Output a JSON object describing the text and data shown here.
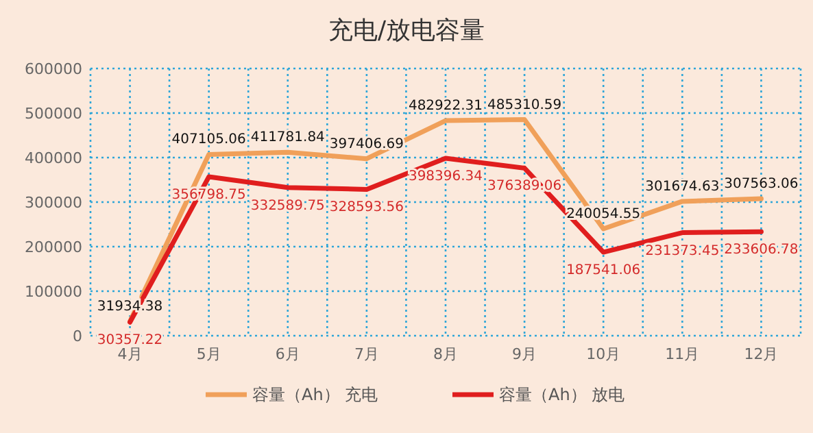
{
  "chart_data": {
    "type": "line",
    "title": "充电/放电容量",
    "categories": [
      "4月",
      "5月",
      "6月",
      "7月",
      "8月",
      "9月",
      "10月",
      "11月",
      "12月"
    ],
    "series": [
      {
        "name": "容量（Ah） 充电",
        "color": "#f0a05a",
        "values": [
          31934.38,
          407105.06,
          411781.84,
          397406.69,
          482922.31,
          485310.59,
          240054.55,
          301674.63,
          307563.06
        ]
      },
      {
        "name": "容量（Ah） 放电",
        "color": "#e01e1e",
        "values": [
          30357.22,
          356798.75,
          332589.75,
          328593.56,
          398396.34,
          376389.06,
          187541.06,
          231373.45,
          233606.78
        ]
      }
    ],
    "ylim": [
      0,
      600000
    ],
    "yticks": [
      0,
      100000,
      200000,
      300000,
      400000,
      500000,
      600000
    ],
    "grid": true,
    "legend": "bottom",
    "data_labels": true,
    "marker": "none",
    "line_style": "solid"
  }
}
